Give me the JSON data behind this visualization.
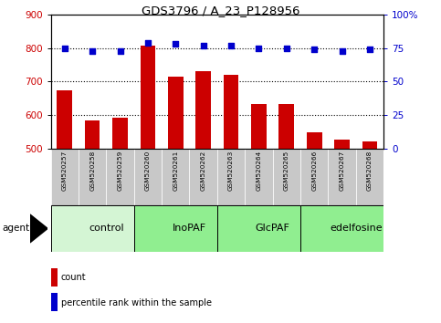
{
  "title": "GDS3796 / A_23_P128956",
  "samples": [
    "GSM520257",
    "GSM520258",
    "GSM520259",
    "GSM520260",
    "GSM520261",
    "GSM520262",
    "GSM520263",
    "GSM520264",
    "GSM520265",
    "GSM520266",
    "GSM520267",
    "GSM520268"
  ],
  "count_values": [
    675,
    585,
    593,
    808,
    715,
    730,
    720,
    632,
    632,
    548,
    528,
    520
  ],
  "percentile_values": [
    75,
    73,
    73,
    79,
    78,
    77,
    77,
    75,
    75,
    74,
    73,
    74
  ],
  "bar_color": "#cc0000",
  "dot_color": "#0000cc",
  "ylim_left": [
    500,
    900
  ],
  "ylim_right": [
    0,
    100
  ],
  "yticks_left": [
    500,
    600,
    700,
    800,
    900
  ],
  "yticks_right": [
    0,
    25,
    50,
    75,
    100
  ],
  "yticklabels_right": [
    "0",
    "25",
    "50",
    "75",
    "100%"
  ],
  "groups": [
    {
      "label": "control",
      "start": 0,
      "end": 3,
      "color": "#d4f5d4"
    },
    {
      "label": "InoPAF",
      "start": 3,
      "end": 6,
      "color": "#90ee90"
    },
    {
      "label": "GlcPAF",
      "start": 6,
      "end": 9,
      "color": "#90ee90"
    },
    {
      "label": "edelfosine",
      "start": 9,
      "end": 12,
      "color": "#90ee90"
    }
  ],
  "agent_label": "agent",
  "legend_count_label": "count",
  "legend_pct_label": "percentile rank within the sample",
  "tick_label_color_left": "#cc0000",
  "tick_label_color_right": "#0000cc",
  "sample_bg_color": "#c8c8c8",
  "figsize": [
    4.83,
    3.54
  ],
  "dpi": 100
}
